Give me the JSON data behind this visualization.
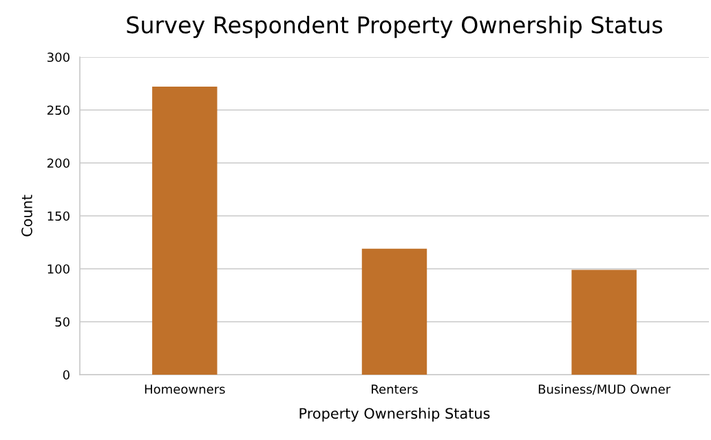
{
  "chart_data": {
    "type": "bar",
    "title": "Survey Respondent Property Ownership Status",
    "xlabel": "Property Ownership Status",
    "ylabel": "Count",
    "categories": [
      "Homeowners",
      "Renters",
      "Business/MUD Owner"
    ],
    "values": [
      272,
      119,
      99
    ],
    "color": "#c0712a",
    "ylim": [
      0,
      300
    ],
    "yticks": [
      0,
      50,
      100,
      150,
      200,
      250,
      300
    ],
    "grid": "y"
  }
}
